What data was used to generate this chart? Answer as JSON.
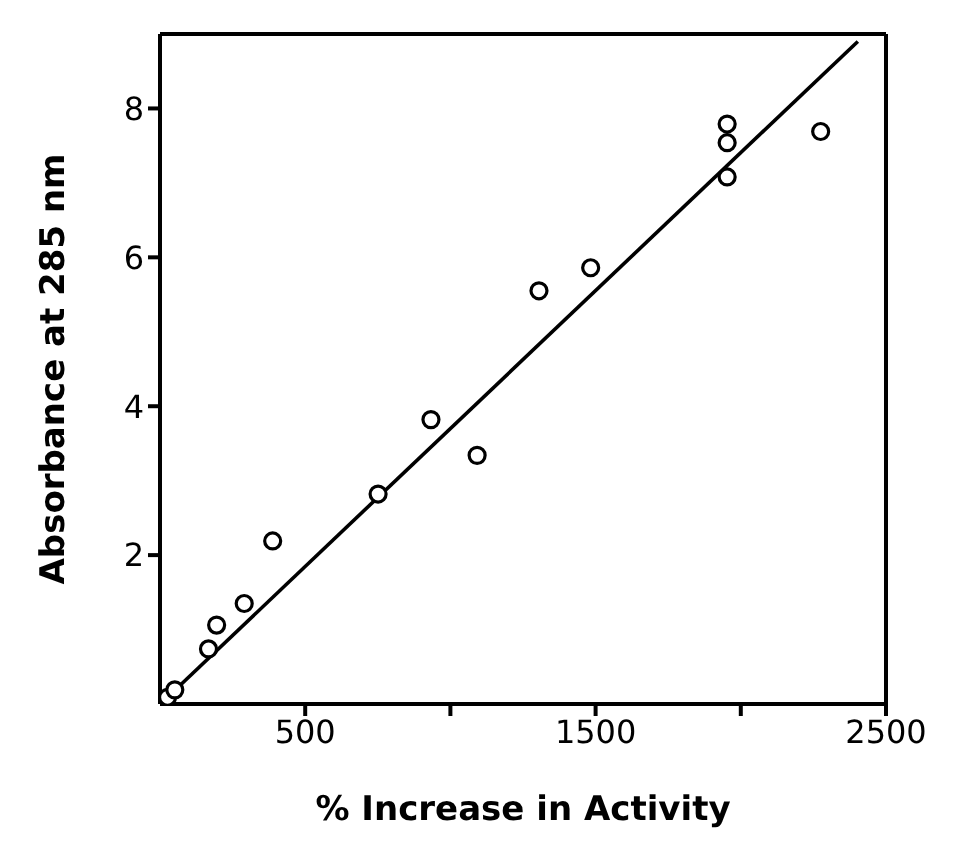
{
  "chart_data": {
    "type": "scatter",
    "xlabel": "% Increase in Activity",
    "ylabel": "Absorbance at 285 nm",
    "xlim": [
      0,
      2500
    ],
    "xticks": [
      500,
      {
        "value": 1000,
        "label": null
      },
      1500,
      {
        "value": 2000,
        "label": null
      },
      2500
    ],
    "ylim": [
      0,
      9
    ],
    "yticks": [
      2,
      4,
      6,
      8
    ],
    "marker": "circle",
    "series": [
      {
        "type": "line",
        "color": "#000000",
        "marker": "none",
        "line_style": "solid",
        "x": [
          15,
          2403
        ],
        "values": [
          0.05,
          8.9
        ]
      },
      {
        "color": "#000000",
        "x": [
          26,
          51,
          167,
          195,
          290,
          388,
          751,
          933,
          1092,
          1305,
          1483,
          1953,
          1953,
          1953,
          2275
        ],
        "values": [
          0.09,
          0.19,
          0.74,
          1.06,
          1.35,
          2.19,
          2.82,
          3.82,
          3.34,
          5.55,
          5.86,
          7.79,
          7.54,
          7.08,
          7.69
        ]
      }
    ]
  }
}
